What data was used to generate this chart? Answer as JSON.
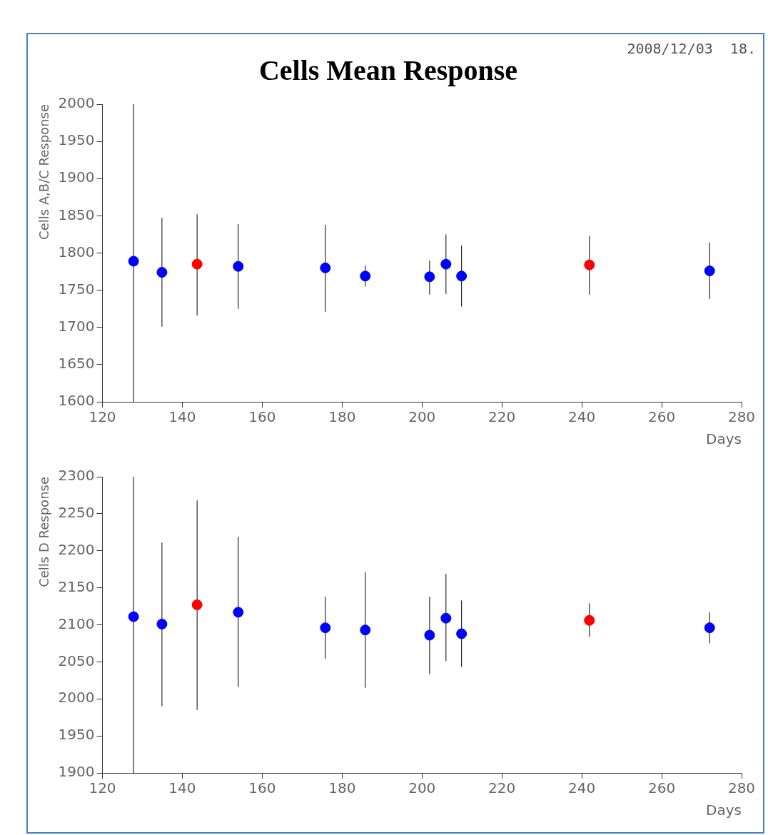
{
  "chart_data": [
    {
      "type": "scatter",
      "title": "Cells Mean Response",
      "xlabel": "Days",
      "ylabel": "Cells A,B/C Response",
      "annotations": [
        "2008/12/03  18."
      ],
      "xlim": [
        120,
        280
      ],
      "xticks": [
        120,
        140,
        160,
        180,
        200,
        220,
        240,
        260,
        280
      ],
      "ylim": [
        1600,
        2000
      ],
      "yticks": [
        1600,
        1650,
        1700,
        1750,
        1800,
        1850,
        1900,
        1950,
        2000
      ],
      "grid": false,
      "marker": "circle",
      "series": [
        {
          "color": "#0000ff",
          "x": [
            127.8,
            134.9,
            154,
            175.8,
            185.8,
            201.9,
            206,
            209.9,
            272
          ],
          "values": [
            1789,
            1774,
            1782,
            1780,
            1769,
            1768,
            1785,
            1769,
            1776
          ],
          "errors": [
            [
              1600,
              2000
            ],
            [
              1701,
              1847
            ],
            [
              1725,
              1839
            ],
            [
              1721,
              1838
            ],
            [
              1755,
              1783
            ],
            [
              1744,
              1790
            ],
            [
              1745,
              1825
            ],
            [
              1728,
              1810
            ],
            [
              1738,
              1814
            ]
          ]
        },
        {
          "color": "#ff0000",
          "x": [
            143.7,
            241.9
          ],
          "values": [
            1785,
            1784
          ],
          "errors": [
            [
              1716,
              1852
            ],
            [
              1744,
              1823
            ]
          ]
        }
      ]
    },
    {
      "type": "scatter",
      "xlabel": "Days",
      "ylabel": "Cells D Response",
      "xlim": [
        120,
        280
      ],
      "xticks": [
        120,
        140,
        160,
        180,
        200,
        220,
        240,
        260,
        280
      ],
      "ylim": [
        1900,
        2300
      ],
      "yticks": [
        1900,
        1950,
        2000,
        2050,
        2100,
        2150,
        2200,
        2250,
        2300
      ],
      "grid": false,
      "marker": "circle",
      "series": [
        {
          "color": "#0000ff",
          "x": [
            127.8,
            134.9,
            154,
            175.8,
            185.8,
            201.9,
            206,
            209.9,
            272
          ],
          "values": [
            2111,
            2101,
            2117,
            2096,
            2093,
            2086,
            2109,
            2088,
            2096
          ],
          "errors": [
            [
              1900,
              2300
            ],
            [
              1990,
              2211
            ],
            [
              2016,
              2219
            ],
            [
              2054,
              2138
            ],
            [
              2015,
              2171
            ],
            [
              2033,
              2138
            ],
            [
              2051,
              2169
            ],
            [
              2043,
              2133
            ],
            [
              2075,
              2117
            ]
          ]
        },
        {
          "color": "#ff0000",
          "x": [
            143.7,
            241.9
          ],
          "values": [
            2127,
            2106
          ],
          "errors": [
            [
              1985,
              2268
            ],
            [
              2084,
              2129
            ]
          ]
        }
      ]
    }
  ]
}
